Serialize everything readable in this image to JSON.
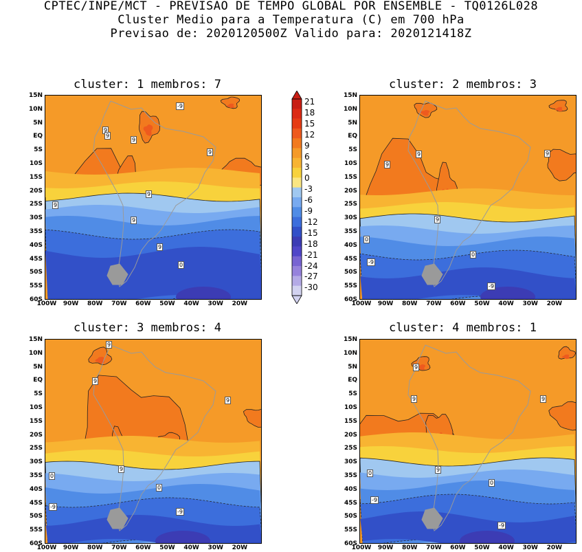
{
  "header": {
    "line1": "CPTEC/INPE/MCT - PREVISAO DE TEMPO GLOBAL POR ENSEMBLE - TQ0126L028",
    "line2": "Cluster Medio para a Temperatura (C) em 700 hPa",
    "line3": "Previsao de: 2020120500Z   Valido para: 2020121418Z"
  },
  "panels": [
    {
      "title": "cluster: 1  membros: 7",
      "labels": [
        "9",
        "9",
        "9",
        "9",
        "9",
        "9",
        "9",
        "9",
        "0",
        "-9"
      ]
    },
    {
      "title": "cluster: 2  membros: 3",
      "labels": [
        "9",
        "9",
        "9",
        "9",
        "0",
        "0",
        "-9",
        "-9"
      ]
    },
    {
      "title": "cluster: 3  membros: 4",
      "labels": [
        "9",
        "9",
        "9",
        "9",
        "0",
        "0",
        "-9",
        "-9"
      ]
    },
    {
      "title": "cluster: 4  membros: 1",
      "labels": [
        "9",
        "9",
        "9",
        "9",
        "0",
        "0",
        "-9",
        "-9"
      ]
    }
  ],
  "axes": {
    "lat_ticks": [
      "15N",
      "10N",
      "5N",
      "EQ",
      "5S",
      "10S",
      "15S",
      "20S",
      "25S",
      "30S",
      "35S",
      "40S",
      "45S",
      "50S",
      "55S",
      "60S"
    ],
    "lon_ticks": [
      "100W",
      "90W",
      "80W",
      "70W",
      "60W",
      "50W",
      "40W",
      "30W",
      "20W"
    ]
  },
  "colorbar": {
    "labels": [
      "21",
      "18",
      "15",
      "12",
      "9",
      "6",
      "3",
      "0",
      "-3",
      "-6",
      "-9",
      "-12",
      "-15",
      "-18",
      "-21",
      "-24",
      "-27",
      "-30"
    ],
    "colors": [
      "#c81e14",
      "#dc2a14",
      "#e63c14",
      "#ee5a1e",
      "#f27a1e",
      "#f59a28",
      "#f8b432",
      "#f8d23c",
      "#fae682",
      "#a0c8f0",
      "#78aaf0",
      "#508ce6",
      "#3c6edc",
      "#3250c8",
      "#3c3cb4",
      "#5046c8",
      "#7864d2",
      "#9682dc",
      "#b4aae6",
      "#d2d2f0"
    ]
  },
  "legend": {
    "units": "Temperature (C)"
  }
}
